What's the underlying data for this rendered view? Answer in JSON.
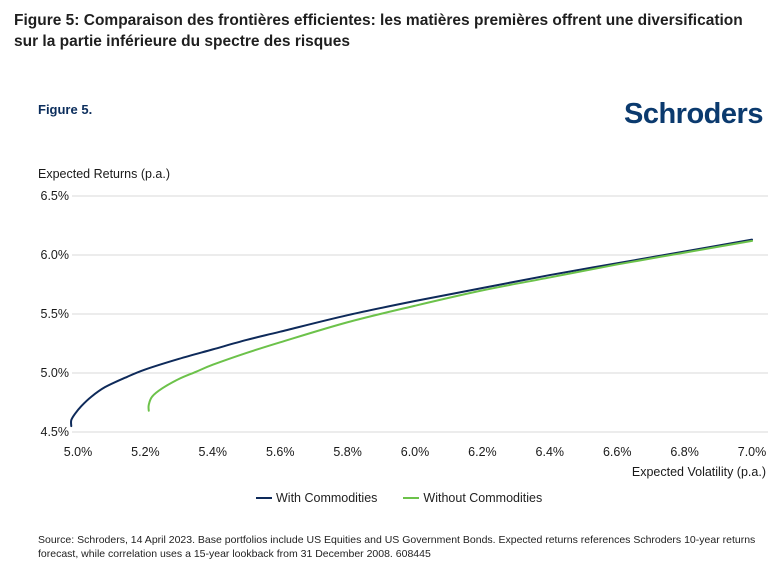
{
  "page": {
    "title": "Figure 5: Comparaison des frontières efficientes: les matières premières offrent une diversification sur la partie inférieure du spectre des risques",
    "figure_label": "Figure 5.",
    "brand": "Schroders",
    "source": "Source: Schroders, 14 April 2023. Base portfolios include US Equities and US Government Bonds. Expected returns references Schroders 10-year returns forecast, while correlation uses a 15-year lookback from 31 December 2008. 608445"
  },
  "colors": {
    "with": "#0e2a5a",
    "without": "#6cc24a",
    "grid": "#d9d9d9",
    "brand": "#0b3a6e"
  },
  "chart_data": {
    "type": "line",
    "title": "",
    "ylabel": "Expected Returns (p.a.)",
    "xlabel": "Expected Volatility (p.a.)",
    "xlim": [
      5.0,
      7.0
    ],
    "ylim": [
      4.5,
      6.5
    ],
    "x_ticks": [
      5.0,
      5.2,
      5.4,
      5.6,
      5.8,
      6.0,
      6.2,
      6.4,
      6.6,
      6.8,
      7.0
    ],
    "x_tick_labels": [
      "5.0%",
      "5.2%",
      "5.4%",
      "5.6%",
      "5.8%",
      "6.0%",
      "6.2%",
      "6.4%",
      "6.6%",
      "6.8%",
      "7.0%"
    ],
    "y_ticks": [
      4.5,
      5.0,
      5.5,
      6.0,
      6.5
    ],
    "y_tick_labels": [
      "4.5%",
      "5.0%",
      "5.5%",
      "6.0%",
      "6.5%"
    ],
    "grid": "horizontal",
    "legend_position": "bottom",
    "series": [
      {
        "name": "With Commodities",
        "color_key": "with",
        "x": [
          4.98,
          4.98,
          4.99,
          5.01,
          5.04,
          5.08,
          5.14,
          5.2,
          5.3,
          5.4,
          5.5,
          5.6,
          5.8,
          6.0,
          6.2,
          6.4,
          6.6,
          6.8,
          7.0
        ],
        "y": [
          4.55,
          4.6,
          4.65,
          4.72,
          4.8,
          4.88,
          4.96,
          5.03,
          5.12,
          5.2,
          5.28,
          5.35,
          5.49,
          5.61,
          5.72,
          5.83,
          5.93,
          6.03,
          6.13
        ]
      },
      {
        "name": "Without Commodities",
        "color_key": "without",
        "x": [
          5.21,
          5.21,
          5.22,
          5.25,
          5.3,
          5.35,
          5.4,
          5.5,
          5.6,
          5.8,
          6.0,
          6.2,
          6.4,
          6.6,
          6.8,
          7.0
        ],
        "y": [
          4.68,
          4.73,
          4.8,
          4.87,
          4.95,
          5.01,
          5.07,
          5.17,
          5.26,
          5.43,
          5.57,
          5.7,
          5.81,
          5.92,
          6.02,
          6.12
        ]
      }
    ]
  }
}
